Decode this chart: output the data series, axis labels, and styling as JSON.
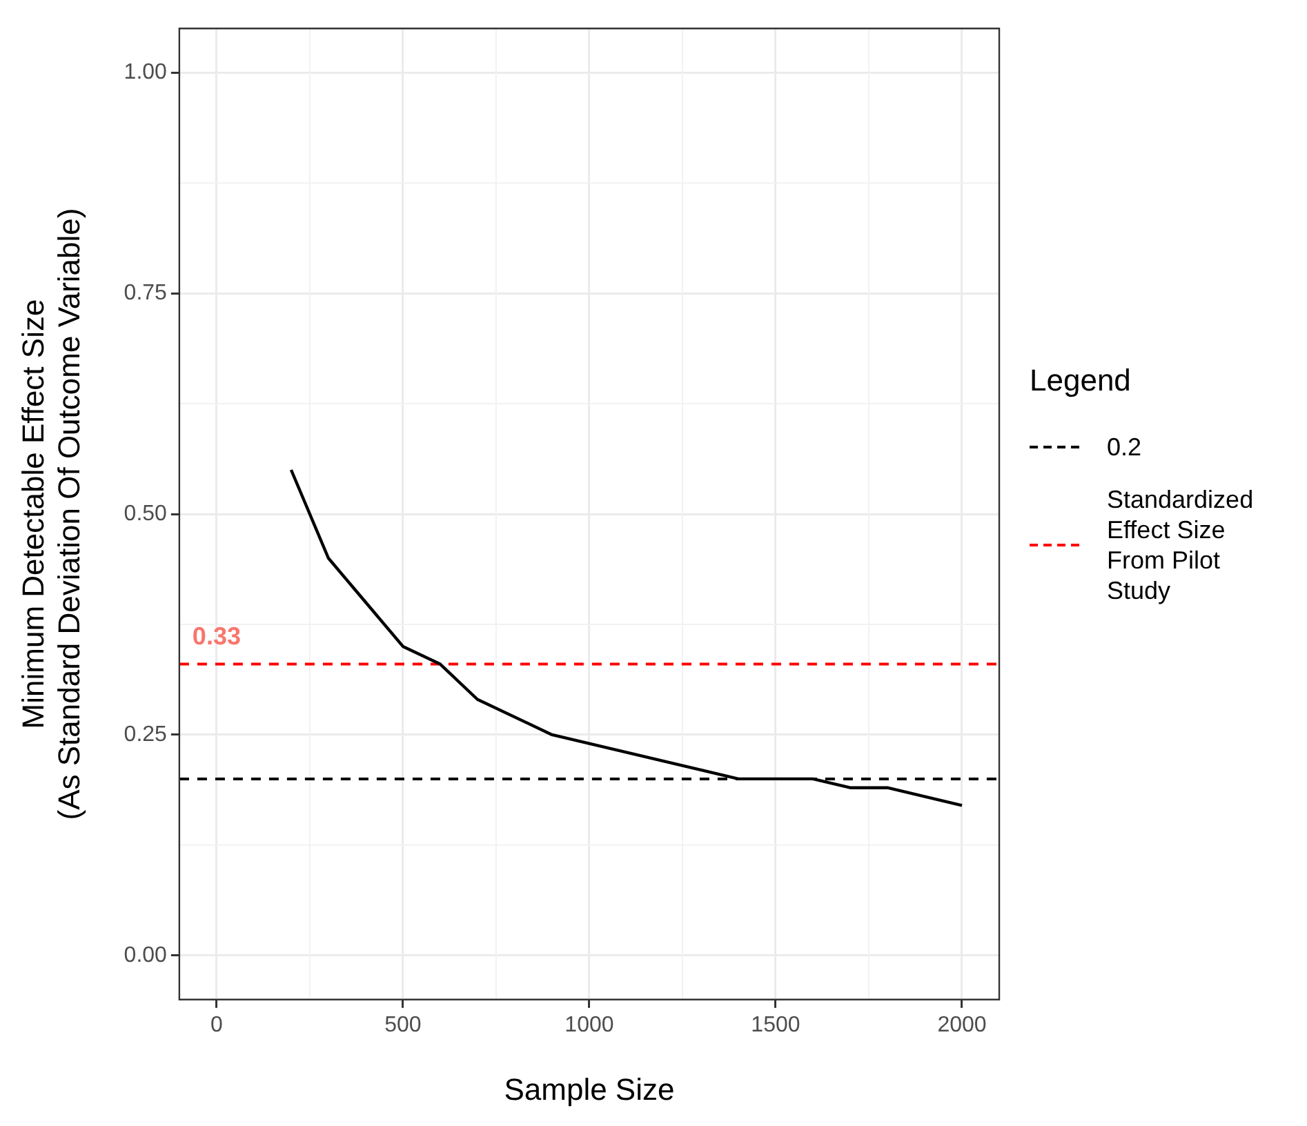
{
  "chart_data": {
    "type": "line",
    "xlabel": "Sample Size",
    "ylabel": "Minimum Detectable Effect Size\n(As Standard Deviation Of Outcome Variable)",
    "legend_title": "Legend",
    "x": [
      200,
      300,
      500,
      600,
      700,
      900,
      1400,
      1600,
      1700,
      1800,
      2000
    ],
    "series": [
      {
        "color": "#000000",
        "values": [
          0.55,
          0.45,
          0.35,
          0.33,
          0.29,
          0.25,
          0.2,
          0.2,
          0.19,
          0.19,
          0.17
        ]
      }
    ],
    "xlim": [
      -100,
      2100
    ],
    "xticks": [
      0,
      500,
      1000,
      1500,
      2000
    ],
    "ylim": [
      -0.05,
      1.05
    ],
    "yticks": [
      {
        "value": 0,
        "label": "0.00"
      },
      {
        "value": 0.25,
        "label": "0.25"
      },
      {
        "value": 0.5,
        "label": "0.50"
      },
      {
        "value": 0.75,
        "label": "0.75"
      },
      {
        "value": 1,
        "label": "1.00"
      }
    ],
    "ref_lines": [
      {
        "axis": "y",
        "value": 0.2,
        "label": "0.2",
        "color": "#000000",
        "line_style": "dashed"
      },
      {
        "axis": "y",
        "value": 0.33,
        "label": "Standardized Effect Size From Pilot Study",
        "color": "#ff0000",
        "line_style": "dashed"
      }
    ],
    "annotations": [
      {
        "text": "0.33",
        "x": 0,
        "y": 0.33
      }
    ],
    "grid": true,
    "legend": "right",
    "marker": "none",
    "line_style": "solid"
  }
}
